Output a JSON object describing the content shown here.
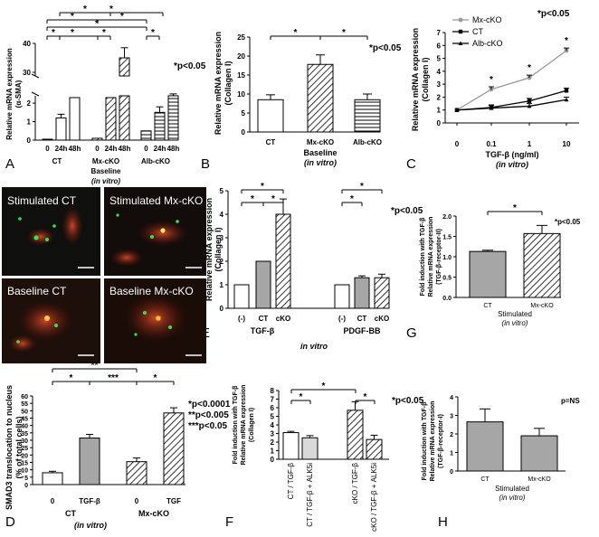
{
  "figure": {
    "panel_letters": [
      "A",
      "B",
      "C",
      "D",
      "E",
      "F",
      "G",
      "H"
    ],
    "significance": {
      "A": "*p<0.05",
      "B": "*p<0.05",
      "C": "*p<0.05",
      "E": "*p<0.05",
      "G": "*p<0.05",
      "F": "*p<0.05",
      "H": "p=NS",
      "D": [
        "*p<0.0001",
        "**p<0.005",
        "***p<0.05"
      ]
    },
    "micro_labels": [
      "Stimulated CT",
      "Stimulated Mx-cKO",
      "Baseline CT",
      "Baseline Mx-cKO"
    ]
  },
  "chart_data": [
    {
      "panel": "A",
      "type": "bar",
      "ylabel_lines": [
        "Relative mRNA expression",
        "(α-SMA)"
      ],
      "yticks_upper": [
        "30",
        "40"
      ],
      "yticks_lower": [
        "0",
        "1",
        "2"
      ],
      "groups": [
        {
          "name": "CT",
          "time_labels": [
            "0",
            "24h",
            "48h"
          ],
          "values": [
            0.05,
            1.2,
            2.3
          ]
        },
        {
          "name": "Mx-cKO",
          "time_labels": [
            "0",
            "24h",
            "48h"
          ],
          "values": [
            0.1,
            2.3,
            35
          ]
        },
        {
          "name": "Alb-cKO",
          "time_labels": [
            "0",
            "24h",
            "48h"
          ],
          "values": [
            0.5,
            1.5,
            2.4
          ]
        }
      ],
      "group_labels": [
        "CT",
        "Mx-cKO",
        "Alb-cKO"
      ],
      "sub_labels": [
        "Baseline",
        "(in vitro)"
      ],
      "patterns": [
        "white",
        "diagonal",
        "horizontal"
      ]
    },
    {
      "panel": "B",
      "type": "bar",
      "ylabel_lines": [
        "Relative mRNA expression",
        "(Collagen I)"
      ],
      "ylim": [
        0,
        25
      ],
      "yticks": [
        "0",
        "5",
        "10",
        "15",
        "20",
        "25"
      ],
      "categories": [
        "CT",
        "Mx-cKO",
        "Alb-cKO"
      ],
      "values": [
        8.5,
        17.8,
        8.5
      ],
      "errors": [
        1.3,
        2.5,
        1.5
      ],
      "sub_labels": [
        "Baseline",
        "(in vitro)"
      ]
    },
    {
      "panel": "C",
      "type": "line",
      "ylabel_lines": [
        "Relative mRNA expression",
        "(Collagen I)"
      ],
      "xlabel_lines": [
        "TGF-β (ng/ml)",
        "(in vitro)"
      ],
      "ylim": [
        0,
        7
      ],
      "yticks": [
        "0",
        "1",
        "2",
        "3",
        "4",
        "5",
        "6",
        "7"
      ],
      "x": [
        "0",
        "0.1",
        "1",
        "10"
      ],
      "series": [
        {
          "name": "Mx-cKO",
          "color": "#999999",
          "values": [
            1.0,
            2.6,
            3.5,
            5.6
          ]
        },
        {
          "name": "CT",
          "color": "#000000",
          "values": [
            1.0,
            1.2,
            1.7,
            2.5
          ]
        },
        {
          "name": "Alb-cKO",
          "color": "#000000",
          "values": [
            1.0,
            1.15,
            1.3,
            1.8
          ]
        }
      ]
    },
    {
      "panel": "D",
      "type": "bar",
      "ylabel_lines": [
        "SMAD3 translocation to nucleus",
        "(% of total cells)"
      ],
      "ylim": [
        0,
        60
      ],
      "yticks": [
        "0",
        "5",
        "10",
        "15",
        "20",
        "25",
        "30",
        "35",
        "40",
        "45",
        "50",
        "55",
        "60"
      ],
      "bar_labels": [
        "0",
        "TGF-β",
        "0",
        "TGF"
      ],
      "group_labels": [
        "CT",
        "Mx-cKO"
      ],
      "bottom_label": "(in vitro)",
      "values": [
        8,
        31.5,
        15.5,
        48.5
      ],
      "errors": [
        1,
        2.5,
        2.5,
        3.5
      ]
    },
    {
      "panel": "E",
      "type": "bar",
      "ylabel_lines": [
        "Relative mRNA expression",
        "(Collagen I)"
      ],
      "ylim": [
        0,
        5
      ],
      "yticks": [
        "0",
        "1",
        "2",
        "3",
        "4",
        "5"
      ],
      "bar_labels": [
        "(-)",
        "CT",
        "cKO",
        "(-)",
        "CT",
        "cKO"
      ],
      "group_labels": [
        "TGF-β",
        "PDGF-BB"
      ],
      "bottom_label": "in vitro",
      "values": [
        1.0,
        2.0,
        4.0,
        1.0,
        1.3,
        1.3
      ],
      "errors": [
        0,
        0,
        0.65,
        0,
        0.08,
        0.15
      ]
    },
    {
      "panel": "F",
      "type": "bar",
      "ylabel_lines": [
        "Fold induction with TGF-β",
        "Relative mRNA expression",
        "(Collagen I)"
      ],
      "ylim": [
        0,
        8
      ],
      "yticks": [
        "0",
        "1",
        "2",
        "3",
        "4",
        "5",
        "6",
        "7",
        "8"
      ],
      "categories": [
        "CT / TGF-β",
        "CT / TGF-β + ALK5i",
        "cKO / TGF-β",
        "cKO / TGF-β + ALK5i"
      ],
      "values": [
        3.1,
        2.5,
        5.7,
        2.3
      ],
      "errors": [
        0.15,
        0.25,
        1.0,
        0.5
      ]
    },
    {
      "panel": "G",
      "type": "bar",
      "ylabel_lines": [
        "Fold induction with TGF-β",
        "Relative mRNA expression",
        "(TGF-β-receptor-II)"
      ],
      "ylim": [
        0,
        2.0
      ],
      "yticks": [
        "0.0",
        "0.5",
        "1.0",
        "1.5",
        "2.0"
      ],
      "categories": [
        "CT",
        "Mx-cKO"
      ],
      "values": [
        1.13,
        1.57
      ],
      "errors": [
        0.03,
        0.2
      ],
      "sub_labels": [
        "Stimulated",
        "(in vitro)"
      ]
    },
    {
      "panel": "H",
      "type": "bar",
      "ylabel_lines": [
        "Fold induction with TGF-β",
        "Relative mRNA expression",
        "(TGF-β-receptor-I)"
      ],
      "ylim": [
        0,
        4
      ],
      "yticks": [
        "0",
        "1",
        "2",
        "3",
        "4"
      ],
      "categories": [
        "CT",
        "Mx-cKO"
      ],
      "values": [
        2.65,
        1.9
      ],
      "errors": [
        0.7,
        0.4
      ],
      "sub_labels": [
        "Stimulated",
        "(in vitro)"
      ]
    }
  ]
}
